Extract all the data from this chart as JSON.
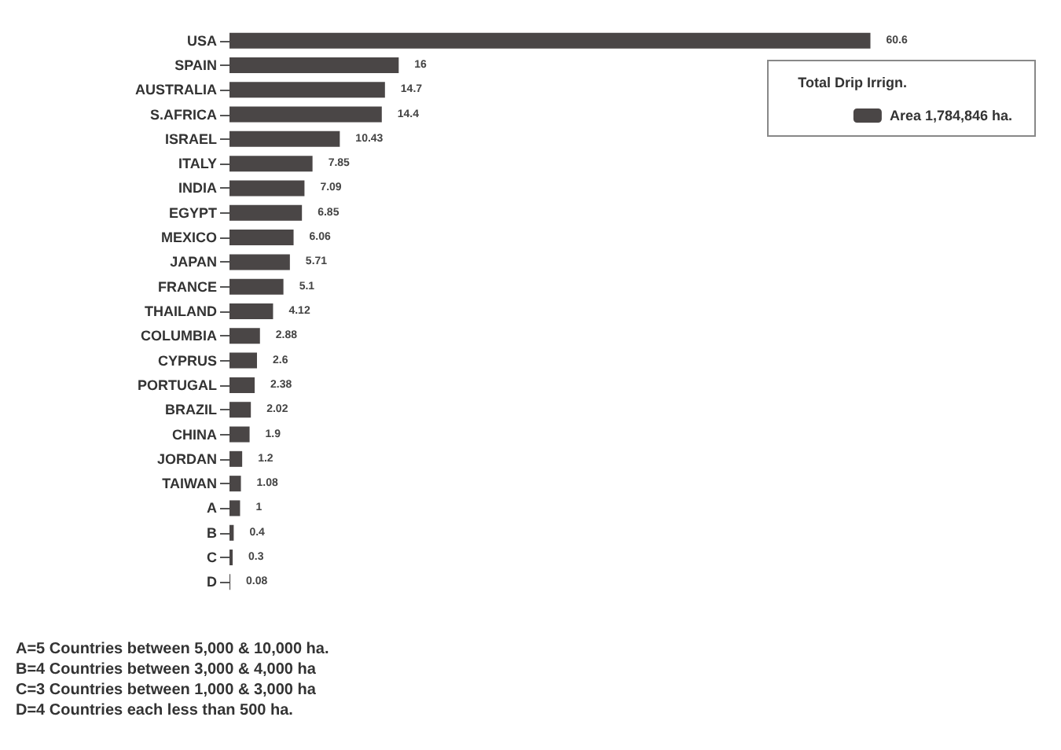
{
  "chart_data": {
    "type": "bar",
    "orientation": "horizontal",
    "categories": [
      "USA",
      "SPAIN",
      "AUSTRALIA",
      "S.AFRICA",
      "ISRAEL",
      "ITALY",
      "INDIA",
      "EGYPT",
      "MEXICO",
      "JAPAN",
      "FRANCE",
      "THAILAND",
      "COLUMBIA",
      "CYPRUS",
      "PORTUGAL",
      "BRAZIL",
      "CHINA",
      "JORDAN",
      "TAIWAN",
      "A",
      "B",
      "C",
      "D"
    ],
    "series": [
      {
        "name": "Area 1,784,846 ha.",
        "color": "#4a4646",
        "values": [
          60.6,
          16,
          14.7,
          14.4,
          10.43,
          7.85,
          7.09,
          6.85,
          6.06,
          5.71,
          5.1,
          4.12,
          2.88,
          2.6,
          2.38,
          2.02,
          1.9,
          1.2,
          1.08,
          1,
          0.4,
          0.3,
          0.08
        ]
      }
    ],
    "data_labels": true,
    "legend": "top right",
    "legend_title": "Total Drip Irrign.",
    "tick_labels": "y",
    "annotations": [
      "A=5 Countries between 5,000 & 10,000 ha.",
      "B=4 Countries between 3,000 & 4,000 ha",
      "C=3 Countries between 1,000 & 3,000 ha",
      "D=4 Countries each less than 500 ha."
    ]
  }
}
